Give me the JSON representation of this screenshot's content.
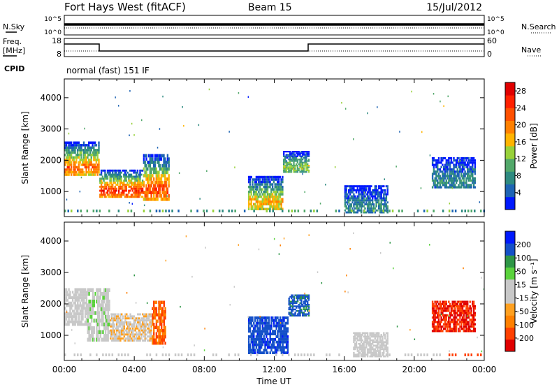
{
  "header": {
    "station": "Fort Hays West (fitACF)",
    "beam": "Beam 15",
    "date": "15/Jul/2012"
  },
  "strip_panels": {
    "noise": {
      "left_label": "N.Sky",
      "left_ticks": [
        "10^5",
        "10^0"
      ],
      "right_label": "N.Search",
      "right_ticks": [
        "10^5",
        "10^0"
      ]
    },
    "freq": {
      "left_label_line1": "Freq.",
      "left_label_line2": "[MHz]",
      "left_ticks": [
        "18",
        "8"
      ],
      "right_label": "Nave",
      "right_ticks": [
        "60",
        "0"
      ]
    },
    "cpid": {
      "label": "CPID",
      "text": "normal (fast) 151 IF"
    }
  },
  "colors": {
    "power_scale": [
      "#0019ff",
      "#1e64b4",
      "#2e8a80",
      "#52a86a",
      "#98d13a",
      "#ffb400",
      "#ff8000",
      "#ff5000",
      "#ff2000",
      "#e00000"
    ],
    "velocity_scale": [
      "#e00000",
      "#ff4000",
      "#ff8000",
      "#ffa020",
      "#c8c8c8",
      "#c8c8c8",
      "#5ad23c",
      "#2e9646",
      "#1450c8",
      "#0019ff"
    ]
  },
  "chart_data": [
    {
      "type": "heatmap",
      "name": "power",
      "ylabel": "Slant Range [km]",
      "yticks": [
        "1000",
        "2000",
        "3000",
        "4000"
      ],
      "ylim": [
        200,
        4600
      ],
      "xlim": [
        "00:00",
        "24:00"
      ],
      "colorbar": {
        "label": "Power [dB]",
        "ticks": [
          "4",
          "8",
          "12",
          "16",
          "20",
          "24",
          "28"
        ],
        "range": [
          0,
          30
        ]
      },
      "bands": [
        {
          "start": 0.0,
          "end": 2.0,
          "range_hi": 2600,
          "range_lo": 1500,
          "peak": 22
        },
        {
          "start": 2.0,
          "end": 4.5,
          "range_hi": 1700,
          "range_lo": 800,
          "peak": 26
        },
        {
          "start": 4.5,
          "end": 6.0,
          "range_hi": 2200,
          "range_lo": 700,
          "peak": 24
        },
        {
          "start": 10.5,
          "end": 12.5,
          "range_hi": 1500,
          "range_lo": 400,
          "peak": 18
        },
        {
          "start": 12.5,
          "end": 14.0,
          "range_hi": 2300,
          "range_lo": 1600,
          "peak": 14
        },
        {
          "start": 16.0,
          "end": 18.5,
          "range_hi": 1200,
          "range_lo": 300,
          "peak": 8
        },
        {
          "start": 21.0,
          "end": 23.5,
          "range_hi": 2100,
          "range_lo": 1100,
          "peak": 8
        }
      ]
    },
    {
      "type": "heatmap",
      "name": "velocity",
      "ylabel": "Slant Range [km]",
      "yticks": [
        "1000",
        "2000",
        "3000",
        "4000"
      ],
      "ylim": [
        200,
        4600
      ],
      "xlabel": "Time UT",
      "xticks": [
        "00:00",
        "04:00",
        "08:00",
        "12:00",
        "16:00",
        "20:00",
        "00:00"
      ],
      "xlim": [
        "00:00",
        "24:00"
      ],
      "colorbar": {
        "label": "Velocity [m s⁻¹]",
        "ticks": [
          "-200",
          "-100",
          "-50",
          "-15",
          "15",
          "50",
          "100",
          "200"
        ],
        "range": [
          -250,
          250
        ]
      },
      "bands": [
        {
          "start": 0.0,
          "end": 1.3,
          "range_hi": 2500,
          "range_lo": 1300,
          "v": 0
        },
        {
          "start": 1.3,
          "end": 2.6,
          "range_hi": 2500,
          "range_lo": 800,
          "v": 30
        },
        {
          "start": 2.6,
          "end": 5.0,
          "range_hi": 1700,
          "range_lo": 800,
          "v": -40
        },
        {
          "start": 5.0,
          "end": 5.8,
          "range_hi": 2100,
          "range_lo": 700,
          "v": -150
        },
        {
          "start": 10.5,
          "end": 12.8,
          "range_hi": 1600,
          "range_lo": 400,
          "v": 180
        },
        {
          "start": 12.8,
          "end": 14.0,
          "range_hi": 2300,
          "range_lo": 1600,
          "v": 170
        },
        {
          "start": 16.5,
          "end": 18.5,
          "range_hi": 1100,
          "range_lo": 300,
          "v": 0
        },
        {
          "start": 21.0,
          "end": 23.5,
          "range_hi": 2100,
          "range_lo": 1100,
          "v": -200
        }
      ]
    }
  ]
}
